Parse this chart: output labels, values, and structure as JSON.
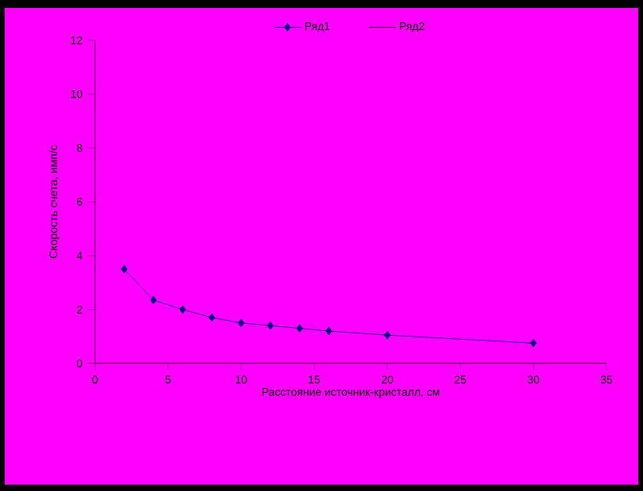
{
  "chart_data": {
    "type": "line",
    "xlabel": "Расстояние источник-кристалл, см",
    "ylabel": "Скорость счета, имп/с",
    "x": [
      2,
      4,
      6,
      8,
      10,
      12,
      14,
      16,
      20,
      30
    ],
    "series": [
      {
        "name": "Ряд1",
        "color": "#000080",
        "values": [
          3.5,
          2.35,
          2.0,
          1.7,
          1.5,
          1.4,
          1.3,
          1.2,
          1.05,
          0.75
        ]
      },
      {
        "name": "Ряд2",
        "values": [
          null,
          null,
          null,
          null,
          null,
          null,
          null,
          null,
          null,
          null
        ]
      }
    ],
    "xlim": [
      0,
      35
    ],
    "xticks": [
      0,
      5,
      10,
      15,
      20,
      25,
      30,
      35
    ],
    "ylim": [
      0,
      12
    ],
    "yticks": [
      0,
      2,
      4,
      6,
      8,
      10,
      12
    ],
    "legend": "top",
    "marker": "diamond",
    "grid": false,
    "line_style": "solid"
  }
}
